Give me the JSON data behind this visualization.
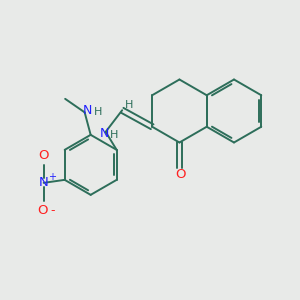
{
  "background_color": "#e8eae8",
  "bond_color": "#2d6e5a",
  "N_color": "#2020ff",
  "O_color": "#ff2020",
  "figsize": [
    3.0,
    3.0
  ],
  "dpi": 100,
  "xlim": [
    0,
    10
  ],
  "ylim": [
    0,
    10
  ]
}
